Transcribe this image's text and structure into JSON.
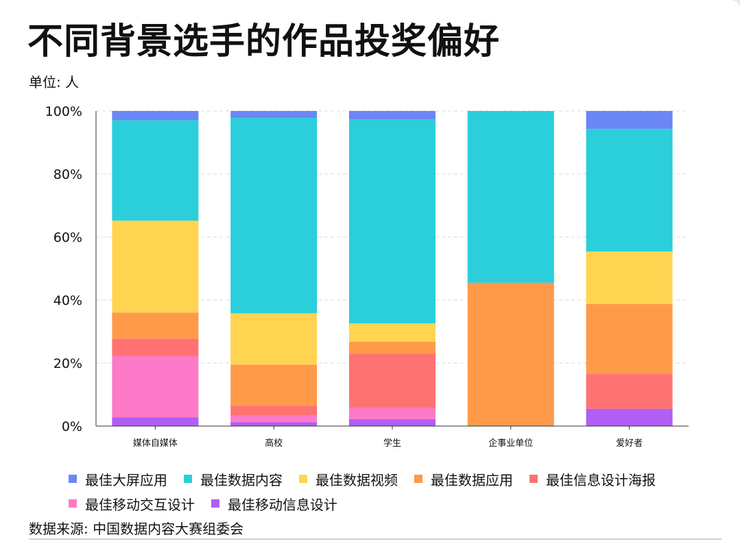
{
  "title": "不同背景选手的作品投奖偏好",
  "unit_label": "单位: 人",
  "source": "数据来源: 中国数据内容大赛组委会",
  "chart_data": {
    "type": "bar",
    "stacked": true,
    "orientation": "vertical",
    "categories": [
      "媒体自媒体",
      "高校",
      "学生",
      "企事业单位",
      "爱好者"
    ],
    "series": [
      {
        "name": "最佳移动信息设计",
        "color": "#b05ef5",
        "values": [
          2.8,
          1.2,
          2.2,
          0,
          5.5
        ]
      },
      {
        "name": "最佳移动交互设计",
        "color": "#fc7ac8",
        "values": [
          19.4,
          2.1,
          3.5,
          0,
          0
        ]
      },
      {
        "name": "最佳信息设计海报",
        "color": "#ff7272",
        "values": [
          5.5,
          3.1,
          17.3,
          0,
          11.0
        ]
      },
      {
        "name": "最佳数据应用",
        "color": "#ff9a4a",
        "values": [
          8.3,
          13.1,
          3.8,
          45.5,
          22.2
        ]
      },
      {
        "name": "最佳数据视频",
        "color": "#ffd451",
        "values": [
          29.2,
          16.3,
          5.8,
          0,
          16.7
        ]
      },
      {
        "name": "最佳数据内容",
        "color": "#2bcedb",
        "values": [
          31.9,
          62.0,
          64.8,
          54.5,
          38.9
        ]
      },
      {
        "name": "最佳大屏应用",
        "color": "#6b86f5",
        "values": [
          2.9,
          2.2,
          2.6,
          0,
          5.7
        ]
      }
    ],
    "legend_order": [
      "最佳大屏应用",
      "最佳数据内容",
      "最佳数据视频",
      "最佳数据应用",
      "最佳信息设计海报",
      "最佳移动交互设计",
      "最佳移动信息设计"
    ],
    "ylim": [
      0,
      100
    ],
    "yticks": [
      "0%",
      "20%",
      "40%",
      "60%",
      "80%",
      "100%"
    ],
    "grid": true,
    "legend_position": "bottom"
  }
}
